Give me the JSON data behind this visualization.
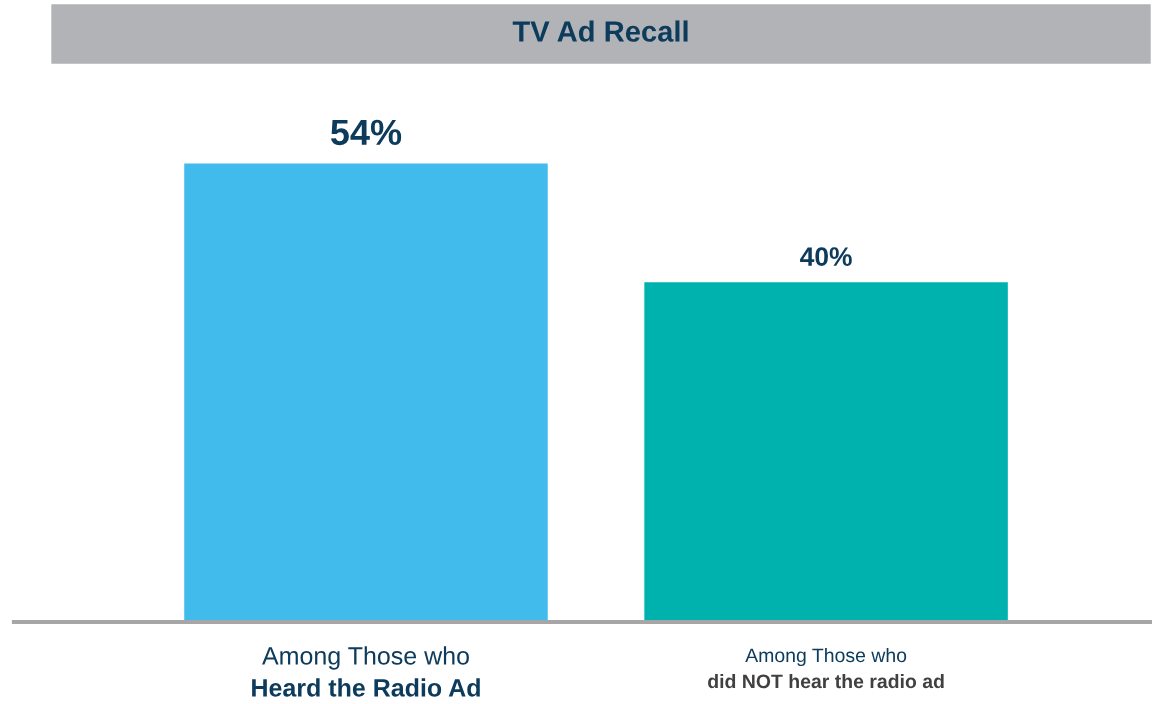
{
  "chart_data": {
    "type": "bar",
    "title": "TV Ad Recall",
    "categories": [
      "Among Those who\nHeard the Radio Ad",
      "Among Those who\ndid NOT hear the radio ad"
    ],
    "values": [
      54,
      40
    ],
    "colors": [
      "#41bbec",
      "#00b2ae"
    ],
    "value_labels": [
      "54%",
      "40%"
    ]
  }
}
